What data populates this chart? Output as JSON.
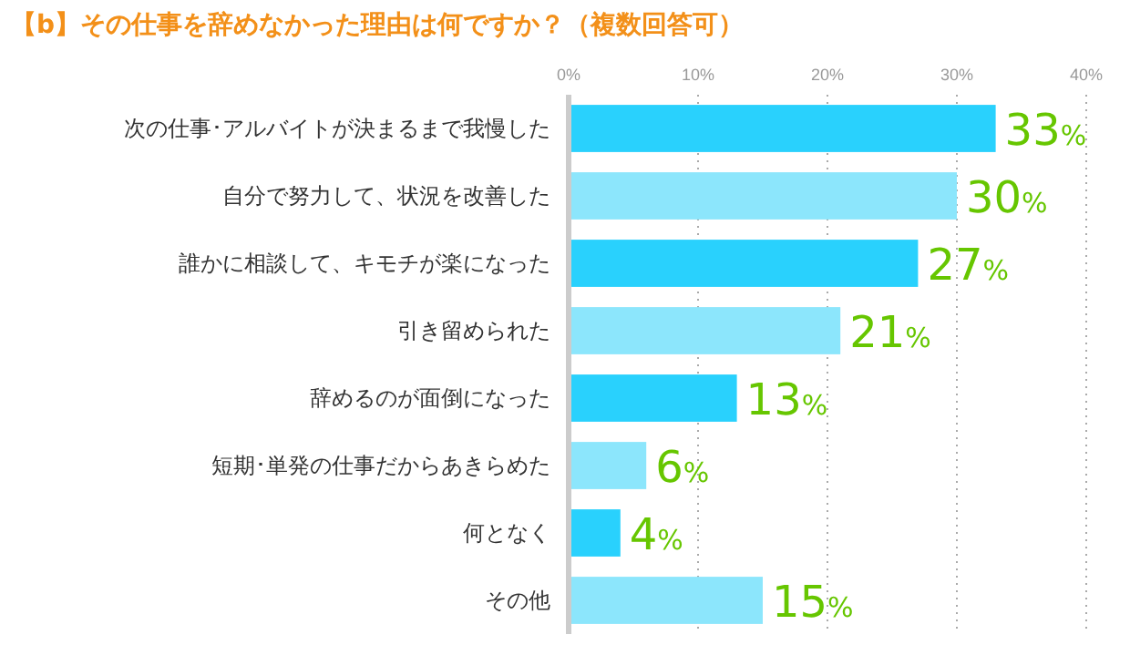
{
  "chart_data": {
    "type": "bar",
    "orientation": "horizontal",
    "title": "【b】その仕事を辞めなかった理由は何ですか？（複数回答可）",
    "categories": [
      "次の仕事･アルバイトが決まるまで我慢した",
      "自分で努力して、状況を改善した",
      "誰かに相談して、キモチが楽になった",
      "引き留められた",
      "辞めるのが面倒になった",
      "短期･単発の仕事だからあきらめた",
      "何となく",
      "その他"
    ],
    "values": [
      33,
      30,
      27,
      21,
      13,
      6,
      4,
      15
    ],
    "colors": [
      "#29d1fd",
      "#8ce6fc",
      "#29d1fd",
      "#8ce6fc",
      "#29d1fd",
      "#8ce6fc",
      "#29d1fd",
      "#8ce6fc"
    ],
    "value_labels": [
      "33%",
      "30%",
      "27%",
      "21%",
      "13%",
      "6%",
      "4%",
      "15%"
    ],
    "xlim": [
      0,
      40
    ],
    "xticks": [
      {
        "value": 0,
        "label": "0%"
      },
      {
        "value": 10,
        "label": "10%"
      },
      {
        "value": 20,
        "label": "20%"
      },
      {
        "value": 30,
        "label": "30%"
      },
      {
        "value": 40,
        "label": "40%"
      }
    ],
    "grid": "x"
  }
}
